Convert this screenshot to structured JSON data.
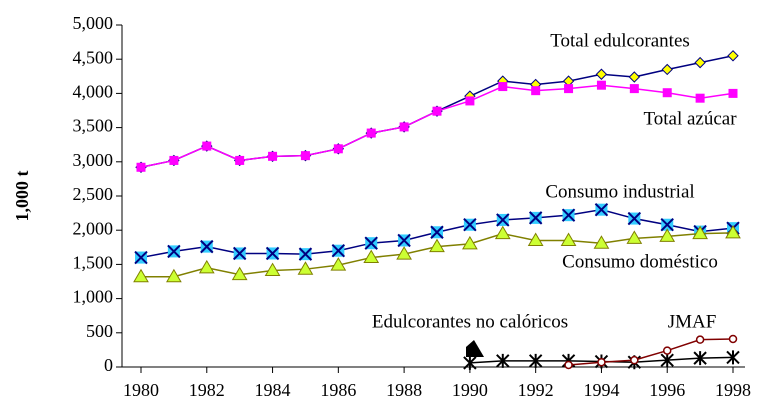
{
  "chart_data": {
    "type": "line",
    "y_label": "1,000 t",
    "x": [
      1980,
      1981,
      1982,
      1983,
      1984,
      1985,
      1986,
      1987,
      1988,
      1989,
      1990,
      1991,
      1992,
      1993,
      1994,
      1995,
      1996,
      1997,
      1998
    ],
    "xlim": [
      1980,
      1998
    ],
    "xticks": [
      1980,
      1982,
      1984,
      1986,
      1988,
      1990,
      1992,
      1994,
      1996,
      1998
    ],
    "ylim": [
      0,
      5000
    ],
    "yticks": [
      0,
      {
        "value": 500,
        "label": "500"
      },
      {
        "value": 1000,
        "label": "1,000"
      },
      {
        "value": 1500,
        "label": "1,500"
      },
      {
        "value": 2000,
        "label": "2,000"
      },
      {
        "value": 2500,
        "label": "2,500"
      },
      {
        "value": 3000,
        "label": "3,000"
      },
      {
        "value": 3500,
        "label": "3,500"
      },
      {
        "value": 4000,
        "label": "4,000"
      },
      {
        "value": 4500,
        "label": "4,500"
      },
      {
        "value": 5000,
        "label": "5,000"
      }
    ],
    "grid": false,
    "series": [
      {
        "name": "Total edulcorantes",
        "color": "#000080",
        "marker": "diamond",
        "marker_color": "#ffff00",
        "values": [
          2920,
          3020,
          3230,
          3020,
          3080,
          3090,
          3190,
          3420,
          3510,
          3740,
          3960,
          4180,
          4130,
          4180,
          4280,
          4240,
          4350,
          4450,
          4550
        ]
      },
      {
        "name": "Total azúcar",
        "color": "#ff00ff",
        "marker": "square",
        "marker_color": "#ff00ff",
        "values": [
          2920,
          3020,
          3230,
          3020,
          3080,
          3090,
          3190,
          3420,
          3510,
          3740,
          3890,
          4100,
          4040,
          4070,
          4120,
          4070,
          4010,
          3930,
          4000
        ]
      },
      {
        "name": "Consumo industrial",
        "color": "#000080",
        "marker": "squarex",
        "marker_color": "#33ccff",
        "values": [
          1600,
          1690,
          1760,
          1660,
          1660,
          1650,
          1700,
          1810,
          1850,
          1970,
          2080,
          2150,
          2180,
          2220,
          2300,
          2170,
          2080,
          1980,
          2030
        ]
      },
      {
        "name": "Consumo doméstico",
        "color": "#808000",
        "marker": "triangle",
        "marker_color": "#ccff33",
        "values": [
          1320,
          1320,
          1450,
          1350,
          1410,
          1430,
          1490,
          1600,
          1650,
          1760,
          1800,
          1950,
          1850,
          1850,
          1810,
          1880,
          1910,
          1950,
          1960
        ]
      },
      {
        "name": "Edulcorantes no calóricos",
        "color": "#000000",
        "marker": "asterisk",
        "marker_color": "#000000",
        "values": [
          null,
          null,
          null,
          null,
          null,
          null,
          null,
          null,
          null,
          null,
          60,
          90,
          90,
          90,
          80,
          70,
          100,
          130,
          140
        ]
      },
      {
        "name": "JMAF",
        "color": "#800000",
        "marker": "circle",
        "marker_color": "#ffffff",
        "values": [
          null,
          null,
          null,
          null,
          null,
          null,
          null,
          null,
          null,
          null,
          null,
          null,
          null,
          30,
          70,
          100,
          240,
          400,
          410
        ]
      }
    ]
  }
}
